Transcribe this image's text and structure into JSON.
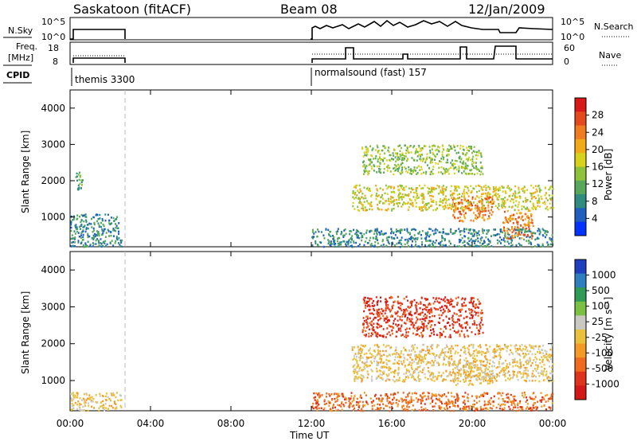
{
  "header": {
    "station": "Saskatoon (fitACF)",
    "beam": "Beam 08",
    "date": "12/Jan/2009"
  },
  "strip": {
    "left_label_nsky": "N.Sky",
    "nsky_ticks": [
      "10^5",
      "10^0"
    ],
    "right_label_nsearch": "N.Search",
    "nsearch_ticks": [
      "10^5",
      "10^0"
    ],
    "freq_label_line1": "Freq.",
    "freq_label_line2": "[MHz]",
    "freq_ticks": [
      "18",
      "8"
    ],
    "nave_label": "Nave",
    "nave_ticks": [
      "60",
      "0"
    ],
    "cpid_label": "CPID",
    "cpid_1": "themis 3300",
    "cpid_2": "normalsound (fast) 157"
  },
  "panels": {
    "power": {
      "ylabel": "Slant Range [km]",
      "yticks": [
        "4000",
        "3000",
        "2000",
        "1000"
      ],
      "cbar_label": "Power [dB]",
      "cbar_ticks": [
        "28",
        "24",
        "20",
        "16",
        "12",
        "8",
        "4"
      ],
      "cbar_colors": [
        "#0033ff",
        "#1f5fbf",
        "#2f8c7f",
        "#57a85a",
        "#8ec23a",
        "#d7d21c",
        "#f2aa18",
        "#ef7d1f",
        "#e44a1c",
        "#d91818"
      ]
    },
    "velocity": {
      "ylabel": "Slant Range [km]",
      "yticks": [
        "4000",
        "3000",
        "2000",
        "1000"
      ],
      "cbar_label": "Velocity [m s⁻¹]",
      "cbar_ticks": [
        "1000",
        "500",
        "100",
        "25",
        "-25",
        "-100",
        "-500",
        "-1000"
      ],
      "cbar_colors": [
        "#1f3fbf",
        "#2f7fbf",
        "#2e9a55",
        "#7cc043",
        "#c9c9c2",
        "#e9c13c",
        "#f39b25",
        "#ef6b1f",
        "#e0331b",
        "#d41818"
      ]
    }
  },
  "xaxis": {
    "label": "Time UT",
    "ticks": [
      "00:00",
      "04:00",
      "08:00",
      "12:00",
      "16:00",
      "20:00",
      "00:00"
    ]
  },
  "chart_data": [
    {
      "type": "heatmap",
      "title": "Power",
      "x_unit": "hours UT",
      "y_unit": "km",
      "xlim": [
        0,
        24
      ],
      "ylim": [
        180,
        4500
      ],
      "zlabel": "Power [dB]",
      "zlim": [
        0,
        30
      ],
      "regions": [
        {
          "t0": 0.2,
          "t1": 0.6,
          "r0": 1750,
          "r1": 2300,
          "level": 10
        },
        {
          "t0": 0.0,
          "t1": 2.4,
          "r0": 500,
          "r1": 1100,
          "level": 6
        },
        {
          "t0": 0.0,
          "t1": 2.6,
          "r0": 200,
          "r1": 500,
          "level": 8
        },
        {
          "t0": 12.0,
          "t1": 24.0,
          "r0": 200,
          "r1": 700,
          "level": 8
        },
        {
          "t0": 14.0,
          "t1": 24.0,
          "r0": 1200,
          "r1": 1900,
          "level": 18
        },
        {
          "t0": 14.5,
          "t1": 20.5,
          "r0": 2200,
          "r1": 3000,
          "level": 14
        },
        {
          "t0": 19.0,
          "t1": 21.0,
          "r0": 900,
          "r1": 1600,
          "level": 22
        },
        {
          "t0": 21.5,
          "t1": 23.0,
          "r0": 400,
          "r1": 1200,
          "level": 22
        }
      ]
    },
    {
      "type": "heatmap",
      "title": "Velocity",
      "x_unit": "hours UT",
      "y_unit": "km",
      "xlim": [
        0,
        24
      ],
      "ylim": [
        180,
        4500
      ],
      "zlabel": "Velocity [m s-1]",
      "zlim": [
        -1000,
        1000
      ],
      "regions": [
        {
          "t0": 0.0,
          "t1": 2.6,
          "r0": 200,
          "r1": 700,
          "level": 0
        },
        {
          "t0": 12.0,
          "t1": 24.0,
          "r0": 200,
          "r1": 700,
          "level": -80
        },
        {
          "t0": 14.5,
          "t1": 20.5,
          "r0": 2200,
          "r1": 3300,
          "level": -300
        },
        {
          "t0": 14.0,
          "t1": 24.0,
          "r0": 1000,
          "r1": 2000,
          "level": 0
        },
        {
          "t0": 19.0,
          "t1": 21.0,
          "r0": 900,
          "r1": 1500,
          "level": 0
        }
      ]
    }
  ]
}
